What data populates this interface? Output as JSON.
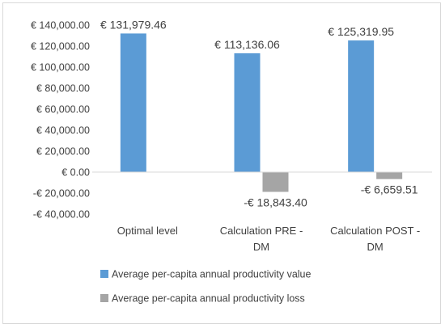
{
  "chart_data": {
    "type": "bar",
    "categories": [
      [
        "Optimal level"
      ],
      [
        "Calculation PRE -",
        "DM"
      ],
      [
        "Calculation POST -",
        "DM"
      ]
    ],
    "series": [
      {
        "name": "Average per-capita annual productivity value",
        "color": "#5b9bd5",
        "values": [
          131979.46,
          113136.06,
          125319.95
        ],
        "labels": [
          "€ 131,979.46",
          "€ 113,136.06",
          "€ 125,319.95"
        ]
      },
      {
        "name": "Average per-capita annual productivity loss",
        "color": "#a5a5a5",
        "values": [
          null,
          -18843.4,
          -6659.51
        ],
        "labels": [
          "",
          "-€ 18,843.40",
          "-€ 6,659.51"
        ]
      }
    ],
    "ylim": [
      -40000,
      140000
    ],
    "yticks": [
      140000,
      120000,
      100000,
      80000,
      60000,
      40000,
      20000,
      0,
      -20000,
      -40000
    ],
    "ytick_labels": [
      "€ 140,000.00",
      "€ 120,000.00",
      "€ 100,000.00",
      "€ 80,000.00",
      "€ 60,000.00",
      "€ 40,000.00",
      "€ 20,000.00",
      "€ 0.00",
      "-€ 20,000.00",
      "-€ 40,000.00"
    ],
    "grid": false,
    "legend": "bottom-left",
    "axis_line_color": "#d9d9d9"
  }
}
